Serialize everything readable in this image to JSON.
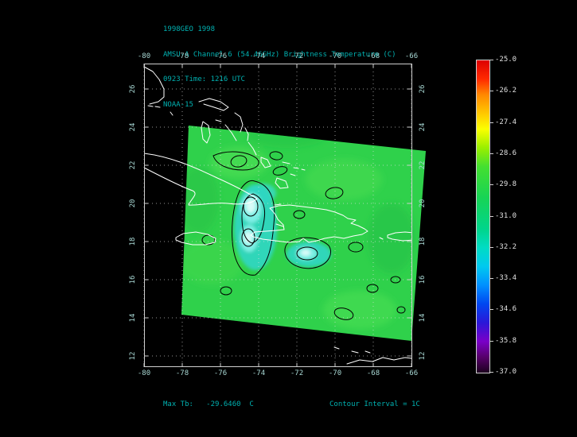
{
  "header": {
    "line1": "1998GEO 1998",
    "line2": "AMSU-A Channel 6 (54.46GHz) Brightness Temperature (C)",
    "line3": "0923 Time: 1216 UTC",
    "line4": "NOAA-15"
  },
  "footer": {
    "max_tb": "Max Tb:   -29.6460  C",
    "contour_interval": "Contour Interval = 1C"
  },
  "chart_data": {
    "type": "heatmap",
    "title": "AMSU-A Channel 6 (54.46GHz) Brightness Temperature (C)",
    "dataset": "1998GEO 1998",
    "time_label": "0923 Time: 1216 UTC",
    "satellite": "NOAA-15",
    "x_ticks": [
      "-80",
      "-78",
      "-76",
      "-74",
      "-72",
      "-70",
      "-68",
      "-66"
    ],
    "y_ticks": [
      "26",
      "24",
      "22",
      "20",
      "18",
      "16",
      "14",
      "12"
    ],
    "xlim": [
      -80,
      -66
    ],
    "ylim": [
      12,
      26
    ],
    "grid": true,
    "max_tb_c": -29.646,
    "contour_interval_c": 1,
    "features": {
      "swath": "tilted satellite swath over Caribbean, mostly -29.8 to -31 C (green)",
      "cold_cores": "two cold cyan regions (~-32 to -33.5 C) near western Hispaniola and south of eastern Hispaniola, ringed by 1C black contours"
    },
    "colorbar": {
      "min": -37.0,
      "max": -25.0,
      "labels": [
        "-25.0",
        "-26.2",
        "-27.4",
        "-28.6",
        "-29.8",
        "-31.0",
        "-32.2",
        "-33.4",
        "-34.6",
        "-35.8",
        "-37.0"
      ],
      "stops": [
        {
          "p": 0.0,
          "c": "#dd0000"
        },
        {
          "p": 0.06,
          "c": "#ff2a00"
        },
        {
          "p": 0.11,
          "c": "#ff8800"
        },
        {
          "p": 0.18,
          "c": "#ffd300"
        },
        {
          "p": 0.22,
          "c": "#fbff00"
        },
        {
          "p": 0.28,
          "c": "#9aef00"
        },
        {
          "p": 0.34,
          "c": "#44df30"
        },
        {
          "p": 0.44,
          "c": "#17d455"
        },
        {
          "p": 0.54,
          "c": "#00d58b"
        },
        {
          "p": 0.6,
          "c": "#00dcc4"
        },
        {
          "p": 0.66,
          "c": "#00c9ef"
        },
        {
          "p": 0.72,
          "c": "#0090ff"
        },
        {
          "p": 0.78,
          "c": "#0047f0"
        },
        {
          "p": 0.84,
          "c": "#2a18d8"
        },
        {
          "p": 0.9,
          "c": "#7a00c8"
        },
        {
          "p": 0.95,
          "c": "#57006b"
        },
        {
          "p": 1.0,
          "c": "#1c001e"
        }
      ]
    }
  },
  "colors": {
    "background": "#000000",
    "annotation_teal": "#00b0b0",
    "axis_text": "#a8d8d4",
    "frame": "#cfcfcf",
    "coastline": "#ffffff",
    "swath_green": "#2fd14b",
    "cold_cyan": "#2fd6c2",
    "cold_core": "#d8fcf8",
    "contour": "#000000"
  }
}
